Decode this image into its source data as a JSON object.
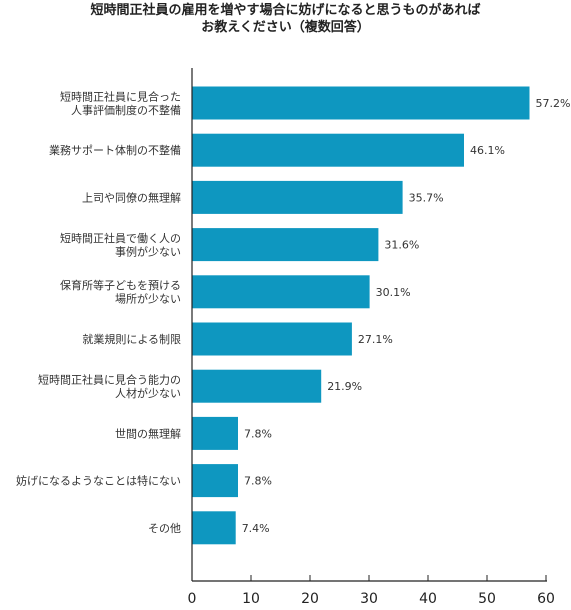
{
  "chart_data": {
    "type": "bar",
    "orientation": "horizontal",
    "title_lines": [
      "短時間正社員の雇用を増やす場合に妨げになると思うものがあれば",
      "お教えください（複数回答）"
    ],
    "categories": [
      [
        "短時間正社員に見合った",
        "人事評価制度の不整備"
      ],
      [
        "業務サポート体制の不整備"
      ],
      [
        "上司や同僚の無理解"
      ],
      [
        "短時間正社員で働く人の",
        "事例が少ない"
      ],
      [
        "保育所等子どもを預ける",
        "場所が少ない"
      ],
      [
        "就業規則による制限"
      ],
      [
        "短時間正社員に見合う能力の",
        "人材が少ない"
      ],
      [
        "世間の無理解"
      ],
      [
        "妨げになるようなことは特にない"
      ],
      [
        "その他"
      ]
    ],
    "values": [
      57.2,
      46.1,
      35.7,
      31.6,
      30.1,
      27.1,
      21.9,
      7.8,
      7.8,
      7.4
    ],
    "value_labels": [
      "57.2%",
      "46.1%",
      "35.7%",
      "31.6%",
      "30.1%",
      "27.1%",
      "21.9%",
      "7.8%",
      "7.8%",
      "7.4%"
    ],
    "xlim": [
      0,
      60
    ],
    "x_ticks": [
      "0",
      "10",
      "20",
      "30",
      "40",
      "50",
      "60"
    ],
    "bar_color": "#0e97c0",
    "grid": false,
    "legend": "none"
  }
}
